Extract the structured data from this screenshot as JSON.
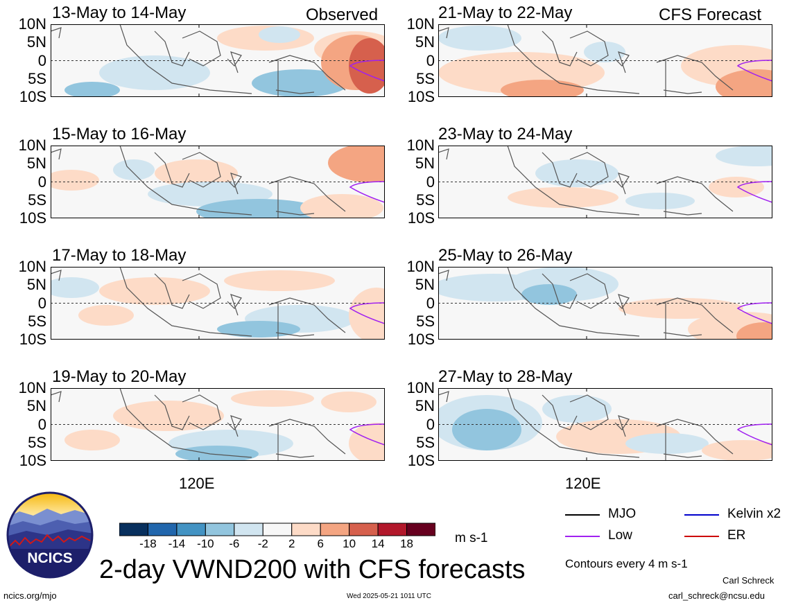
{
  "chart_data": {
    "type": "heatmap",
    "title": "2-day VWND200 with CFS forecasts",
    "variable": "VWND200",
    "units": "m s-1",
    "lat_ticks": [
      "10N",
      "5N",
      "0",
      "5S",
      "10S"
    ],
    "lon_ticks": [
      "120E"
    ],
    "observed_label": "Observed",
    "forecast_label": "CFS Forecast",
    "panels": [
      {
        "period": "13-May to 14-May",
        "source": "observed"
      },
      {
        "period": "15-May to 16-May",
        "source": "observed"
      },
      {
        "period": "17-May to 18-May",
        "source": "observed"
      },
      {
        "period": "19-May to 20-May",
        "source": "observed"
      },
      {
        "period": "21-May to 22-May",
        "source": "forecast"
      },
      {
        "period": "23-May to 24-May",
        "source": "forecast"
      },
      {
        "period": "25-May to 26-May",
        "source": "forecast"
      },
      {
        "period": "27-May to 28-May",
        "source": "forecast"
      }
    ],
    "colorbar": {
      "ticks": [
        "-18",
        "-14",
        "-10",
        "-6",
        "-2",
        "2",
        "6",
        "10",
        "14",
        "18"
      ],
      "colors": [
        "#08305e",
        "#2166ac",
        "#4393c3",
        "#92c5de",
        "#d1e5f0",
        "#f7f7f7",
        "#fddbc7",
        "#f4a582",
        "#d6604d",
        "#b2182b",
        "#67001f"
      ]
    },
    "legend": [
      {
        "label": "MJO",
        "color": "#000000"
      },
      {
        "label": "Kelvin x2",
        "color": "#0000cc"
      },
      {
        "label": "Low",
        "color": "#a020f0"
      },
      {
        "label": "ER",
        "color": "#cc0000"
      }
    ],
    "contours_note": "Contours every 4 m s-1"
  },
  "footer": {
    "site": "ncics.org/mjo",
    "timestamp": "Wed 2025-05-21 1011 UTC",
    "author": "Carl Schreck",
    "email": "carl_schreck@ncsu.edu",
    "logo_text": "NCICS"
  }
}
